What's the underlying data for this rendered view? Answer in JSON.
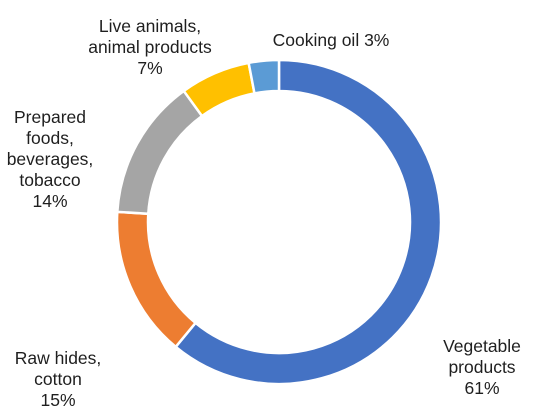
{
  "chart_data": {
    "type": "pie",
    "variant": "donut",
    "title": "",
    "slices": [
      {
        "label_lines": [
          "Vegetable",
          "products",
          "61%"
        ],
        "name": "Vegetable products",
        "value": 61,
        "color": "#4472C4"
      },
      {
        "label_lines": [
          "Raw hides,",
          "cotton",
          "15%"
        ],
        "name": "Raw hides, cotton",
        "value": 15,
        "color": "#ED7D31"
      },
      {
        "label_lines": [
          "Prepared",
          "foods,",
          "beverages,",
          "tobacco",
          "14%"
        ],
        "name": "Prepared foods, beverages, tobacco",
        "value": 14,
        "color": "#A5A5A5"
      },
      {
        "label_lines": [
          "Live animals,",
          "animal products",
          "7%"
        ],
        "name": "Live animals, animal products",
        "value": 7,
        "color": "#FFC000"
      },
      {
        "label_lines": [
          "Cooking oil 3%"
        ],
        "name": "Cooking oil",
        "value": 3,
        "color": "#5B9BD5"
      }
    ]
  }
}
